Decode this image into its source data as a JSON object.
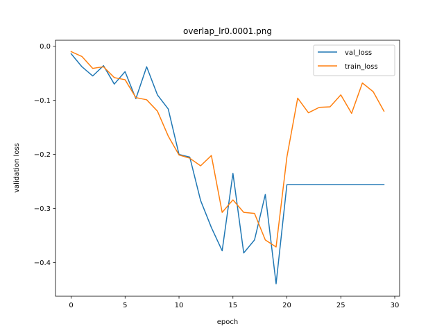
{
  "chart_data": {
    "type": "line",
    "title": "overlap_lr0.0001.png",
    "xlabel": "epoch",
    "ylabel": "validation loss",
    "xlim": [
      -1.45,
      30.45
    ],
    "ylim": [
      -0.462,
      0.011
    ],
    "xticks": [
      0,
      5,
      10,
      15,
      20,
      25,
      30
    ],
    "yticks": [
      0.0,
      -0.1,
      -0.2,
      -0.3,
      -0.4
    ],
    "ytick_labels": [
      "0.0",
      "−0.1",
      "−0.2",
      "−0.3",
      "−0.4"
    ],
    "grid": false,
    "legend_position": "top-right",
    "x": [
      0,
      1,
      2,
      3,
      4,
      5,
      6,
      7,
      8,
      9,
      10,
      11,
      12,
      13,
      14,
      15,
      16,
      17,
      18,
      19,
      20,
      21,
      22,
      23,
      24,
      25,
      26,
      27,
      28,
      29
    ],
    "series": [
      {
        "name": "val_loss",
        "color": "#1f77b4",
        "values": [
          -0.014,
          -0.038,
          -0.055,
          -0.036,
          -0.07,
          -0.047,
          -0.097,
          -0.038,
          -0.09,
          -0.116,
          -0.2,
          -0.205,
          -0.285,
          -0.335,
          -0.378,
          -0.235,
          -0.382,
          -0.358,
          -0.274,
          -0.439,
          -0.256,
          -0.256,
          -0.256,
          -0.256,
          -0.256,
          -0.256,
          -0.256,
          -0.256,
          -0.256,
          -0.256
        ]
      },
      {
        "name": "train_loss",
        "color": "#ff7f0e",
        "values": [
          -0.01,
          -0.019,
          -0.041,
          -0.038,
          -0.058,
          -0.062,
          -0.095,
          -0.099,
          -0.12,
          -0.166,
          -0.201,
          -0.207,
          -0.221,
          -0.202,
          -0.307,
          -0.284,
          -0.307,
          -0.309,
          -0.358,
          -0.371,
          -0.205,
          -0.096,
          -0.123,
          -0.113,
          -0.112,
          -0.09,
          -0.124,
          -0.068,
          -0.084,
          -0.12
        ]
      }
    ]
  }
}
